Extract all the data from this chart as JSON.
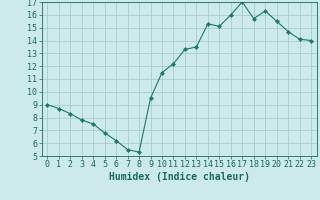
{
  "x": [
    0,
    1,
    2,
    3,
    4,
    5,
    6,
    7,
    8,
    9,
    10,
    11,
    12,
    13,
    14,
    15,
    16,
    17,
    18,
    19,
    20,
    21,
    22,
    23
  ],
  "y": [
    9.0,
    8.7,
    8.3,
    7.8,
    7.5,
    6.8,
    6.2,
    5.5,
    5.3,
    9.5,
    11.5,
    12.2,
    13.3,
    13.5,
    15.3,
    15.1,
    16.0,
    17.0,
    15.7,
    16.3,
    15.5,
    14.7,
    14.1,
    14.0
  ],
  "line_color": "#1a7a6a",
  "marker": "D",
  "marker_size": 2,
  "bg_color": "#cceaea",
  "grid_color": "#aacccc",
  "xlabel": "Humidex (Indice chaleur)",
  "xlim": [
    -0.5,
    23.5
  ],
  "ylim": [
    5,
    17
  ],
  "yticks": [
    5,
    6,
    7,
    8,
    9,
    10,
    11,
    12,
    13,
    14,
    15,
    16,
    17
  ],
  "tick_color": "#1a6a5a",
  "label_fontsize": 6,
  "xlabel_fontsize": 7,
  "axis_color": "#1a6a5a"
}
